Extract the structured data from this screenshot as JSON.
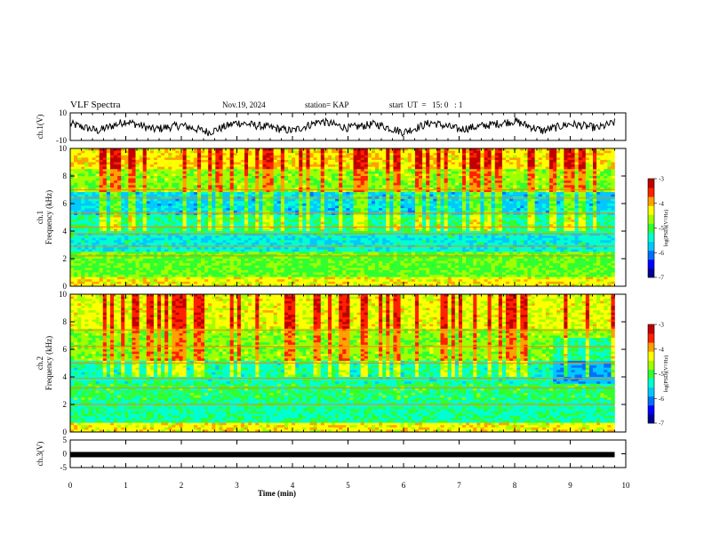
{
  "header": {
    "title": "VLF Spectra",
    "date": "Nov.19, 2024",
    "station": "station= KAP",
    "start_ut": "start  UT  =   15: 0   : 1"
  },
  "colors": {
    "colormap": [
      "#000090",
      "#0000ff",
      "#0070ff",
      "#00c8ff",
      "#00ffd0",
      "#30ff30",
      "#a0ff00",
      "#ffff00",
      "#ffa000",
      "#ff2000",
      "#c00000"
    ],
    "trace": "#000000"
  },
  "chart_data": [
    {
      "type": "line",
      "title": "",
      "ylabel": "ch.1(V)",
      "ylim": [
        -10,
        10
      ],
      "yticks": [
        "10",
        "-10"
      ],
      "xlim": [
        0,
        10
      ],
      "x": [
        0,
        0.5,
        1,
        1.5,
        2,
        2.5,
        3,
        3.5,
        4,
        4.5,
        5,
        5.5,
        6,
        6.5,
        7,
        7.5,
        8,
        8.5,
        9,
        9.5,
        9.8
      ],
      "values": [
        2,
        -3,
        4,
        -2,
        1,
        -4,
        3,
        0,
        -3,
        4,
        -1,
        2,
        -4,
        3,
        -2,
        1,
        4,
        -3,
        2,
        -1,
        3
      ]
    },
    {
      "type": "heatmap",
      "ylabel": "ch.1\nFrequency  (kHz)",
      "ylim": [
        0,
        10
      ],
      "yticks": [
        "0",
        "2",
        "4",
        "6",
        "8",
        "10"
      ],
      "xlim": [
        0,
        10
      ],
      "colorbar": {
        "label": "log(PSD)(V²/Hz)",
        "range": [
          -7,
          -3
        ],
        "ticks": [
          "-3",
          "-4",
          "-5",
          "-6",
          "-7"
        ]
      }
    },
    {
      "type": "heatmap",
      "ylabel": "ch.2\nFrequency  (kHz)",
      "ylim": [
        0,
        10
      ],
      "yticks": [
        "0",
        "2",
        "4",
        "6",
        "8",
        "10"
      ],
      "xlim": [
        0,
        10
      ],
      "colorbar": {
        "label": "log(PSD)(V²/Hz)",
        "range": [
          -7,
          -3
        ],
        "ticks": [
          "-3",
          "-4",
          "-5",
          "-6",
          "-7"
        ]
      }
    },
    {
      "type": "line",
      "ylabel": "ch.3(V)",
      "ylim": [
        -5,
        5
      ],
      "yticks": [
        "5",
        "0",
        "-5"
      ],
      "xlim": [
        0,
        10
      ],
      "x": [
        0,
        9.8
      ],
      "values": [
        -0.3,
        -0.3
      ]
    }
  ],
  "xaxis": {
    "label": "Time  (min)",
    "ticks": [
      "0",
      "1",
      "2",
      "3",
      "4",
      "5",
      "6",
      "7",
      "8",
      "9",
      "10"
    ]
  }
}
